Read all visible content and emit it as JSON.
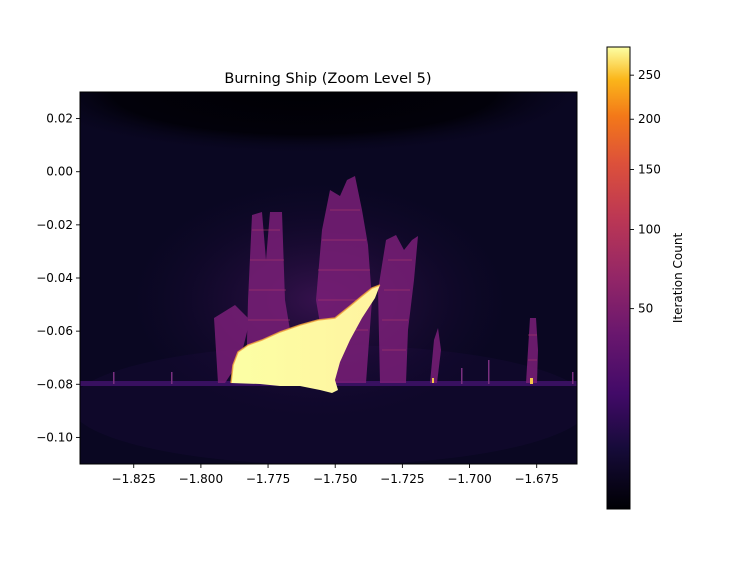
{
  "chart_data": {
    "type": "heatmap",
    "title": "Burning Ship (Zoom Level 5)",
    "xlabel": "",
    "ylabel": "",
    "xlim": [
      -1.845,
      -1.66
    ],
    "ylim": [
      -0.11,
      0.03
    ],
    "x_ticks": [
      -1.825,
      -1.8,
      -1.775,
      -1.75,
      -1.725,
      -1.7,
      -1.675
    ],
    "x_tick_labels": [
      "−1.825",
      "−1.800",
      "−1.775",
      "−1.750",
      "−1.725",
      "−1.700",
      "−1.675"
    ],
    "y_ticks": [
      0.02,
      0.0,
      -0.02,
      -0.04,
      -0.06,
      -0.08,
      -0.1
    ],
    "y_tick_labels": [
      "0.02",
      "0.00",
      "−0.02",
      "−0.04",
      "−0.06",
      "−0.08",
      "−0.10"
    ],
    "colormap": "inferno",
    "colorbar": {
      "label": "Iteration Count",
      "scale": "power",
      "range": [
        0,
        285
      ],
      "ticks": [
        50,
        100,
        150,
        200,
        250
      ],
      "tick_labels": [
        "50",
        "100",
        "150",
        "200",
        "250"
      ]
    },
    "colors": {
      "background": "#000004",
      "low": "#0d0829",
      "mid": "#6a176e",
      "high": "#fcffa4"
    }
  }
}
